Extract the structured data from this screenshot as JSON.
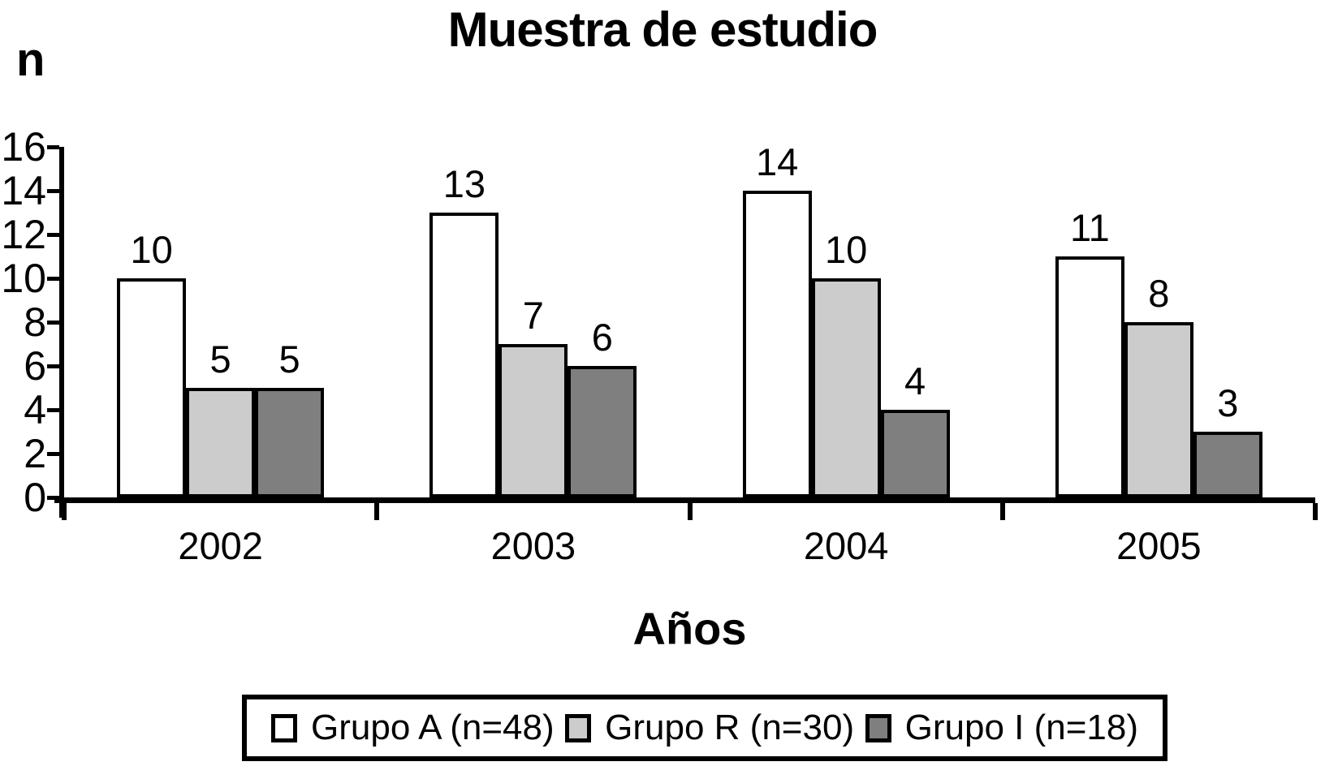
{
  "chart_data": {
    "type": "bar",
    "title": "Muestra de estudio",
    "ylabel": "n",
    "xlabel": "Años",
    "categories": [
      "2002",
      "2003",
      "2004",
      "2005"
    ],
    "series": [
      {
        "name": "Grupo A (n=48)",
        "color": "#ffffff",
        "values": [
          10,
          13,
          14,
          11
        ]
      },
      {
        "name": "Grupo R (n=30)",
        "color": "#cccccc",
        "values": [
          5,
          7,
          10,
          8
        ]
      },
      {
        "name": "Grupo I (n=18)",
        "color": "#7f7f7f",
        "values": [
          5,
          6,
          4,
          3
        ]
      }
    ],
    "ylim": [
      0,
      16
    ],
    "yticks": [
      0,
      2,
      4,
      6,
      8,
      10,
      12,
      14,
      16
    ],
    "grid": false,
    "legend_position": "bottom",
    "bar_border_color": "#000000",
    "text_color": "#000000",
    "background_color": "#ffffff"
  }
}
